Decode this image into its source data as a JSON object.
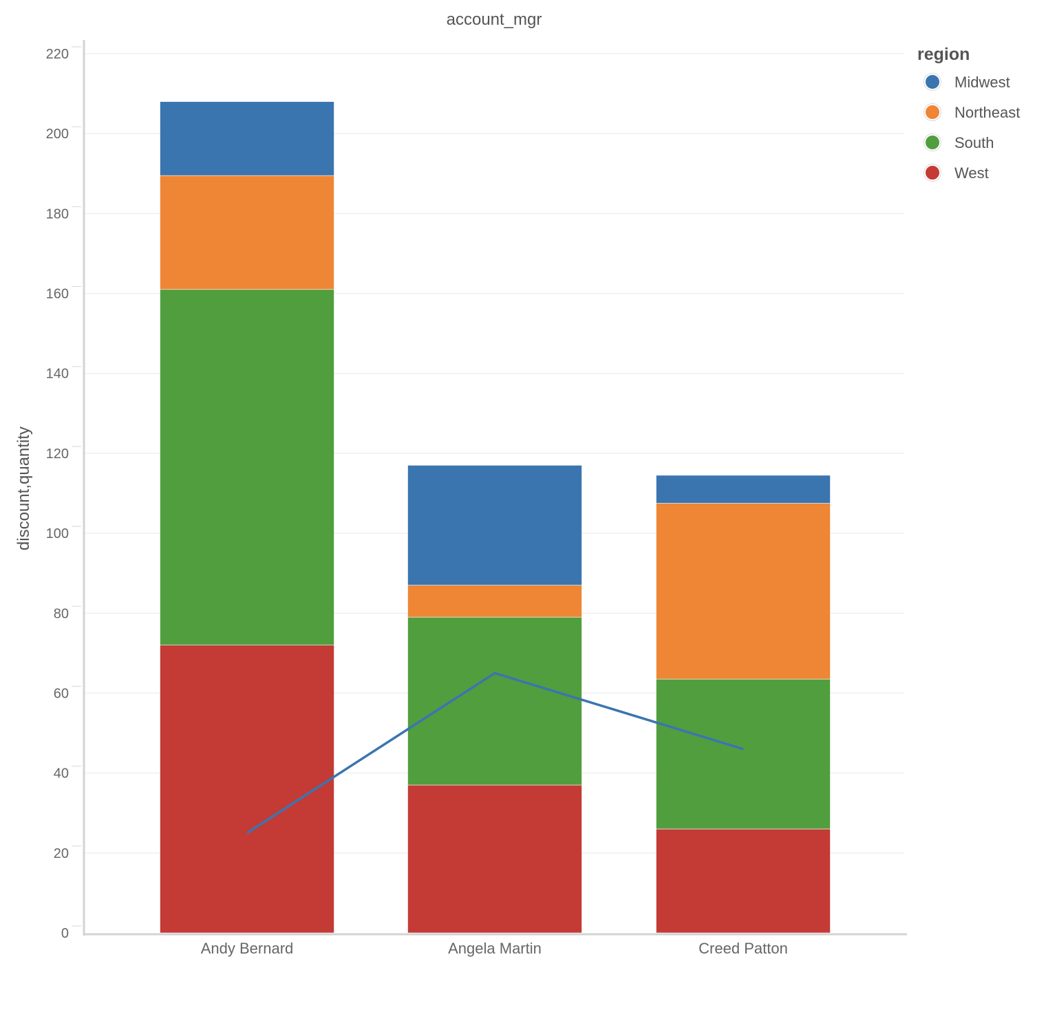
{
  "chart_data": {
    "type": "bar",
    "stacked": true,
    "title": "account_mgr",
    "xlabel": "",
    "ylabel": "discount,quantity",
    "categories": [
      "Andy Bernard",
      "Angela Martin",
      "Creed Patton"
    ],
    "ylim": [
      0,
      220
    ],
    "yticks": [
      0,
      20,
      40,
      60,
      80,
      100,
      120,
      140,
      160,
      180,
      200,
      220
    ],
    "grid": true,
    "legend": {
      "title": "region",
      "placement": "top-right"
    },
    "series": [
      {
        "name": "West",
        "color": "#c43a35",
        "values": [
          72,
          37,
          26
        ]
      },
      {
        "name": "South",
        "color": "#519e3e",
        "values": [
          89,
          42,
          37.5
        ]
      },
      {
        "name": "Northeast",
        "color": "#ee8635",
        "values": [
          28.5,
          8,
          44
        ]
      },
      {
        "name": "Midwest",
        "color": "#3b75af",
        "values": [
          18.5,
          30,
          7
        ]
      }
    ],
    "legend_order": [
      "Midwest",
      "Northeast",
      "South",
      "West"
    ],
    "line": {
      "color": "#3b75af",
      "values": [
        25,
        65,
        46
      ]
    }
  }
}
